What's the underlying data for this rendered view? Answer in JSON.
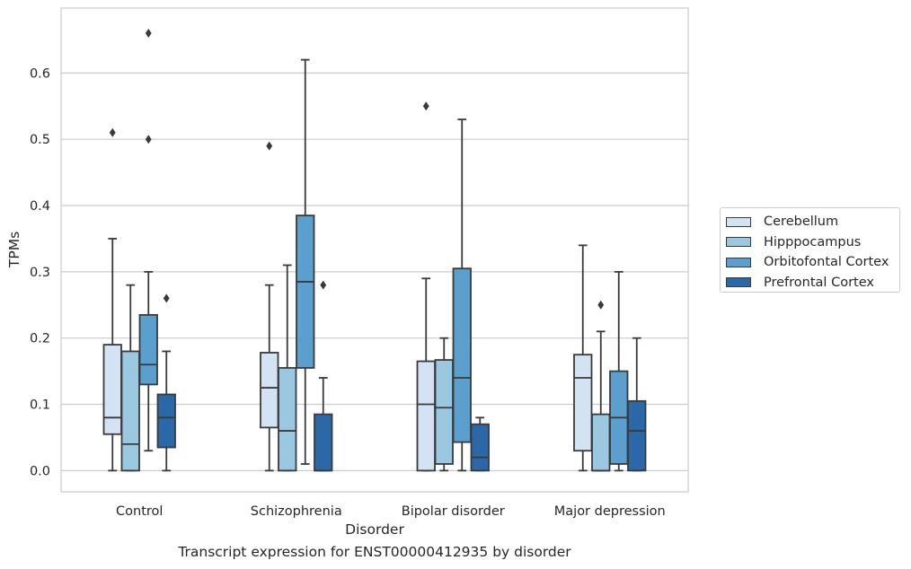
{
  "caption": "Transcript expression for ENST00000412935 by disorder",
  "chart_data": {
    "type": "boxplot",
    "xlabel": "Disorder",
    "ylabel": "TPMs",
    "ylim": [
      -0.032,
      0.698
    ],
    "yticks": [
      "0.0",
      "0.1",
      "0.2",
      "0.3",
      "0.4",
      "0.5",
      "0.6"
    ],
    "grid": true,
    "legend_position": "right",
    "categories": [
      "Control",
      "Schizophrenia",
      "Bipolar disorder",
      "Major depression"
    ],
    "series": [
      {
        "name": "Cerebellum",
        "color": "#d3e3f3",
        "boxes": [
          {
            "q1": 0.055,
            "median": 0.08,
            "q3": 0.19,
            "whislo": 0.0,
            "whishi": 0.35,
            "fliers": [
              0.51
            ]
          },
          {
            "q1": 0.065,
            "median": 0.125,
            "q3": 0.178,
            "whislo": 0.0,
            "whishi": 0.28,
            "fliers": [
              0.49
            ]
          },
          {
            "q1": 0.0,
            "median": 0.1,
            "q3": 0.165,
            "whislo": 0.0,
            "whishi": 0.29,
            "fliers": [
              0.55
            ]
          },
          {
            "q1": 0.03,
            "median": 0.14,
            "q3": 0.175,
            "whislo": 0.0,
            "whishi": 0.34,
            "fliers": []
          }
        ]
      },
      {
        "name": "Hipppocampus",
        "color": "#9ac8e0",
        "boxes": [
          {
            "q1": 0.0,
            "median": 0.04,
            "q3": 0.18,
            "whislo": 0.0,
            "whishi": 0.28,
            "fliers": []
          },
          {
            "q1": 0.0,
            "median": 0.06,
            "q3": 0.155,
            "whislo": 0.0,
            "whishi": 0.31,
            "fliers": []
          },
          {
            "q1": 0.01,
            "median": 0.095,
            "q3": 0.167,
            "whislo": 0.0,
            "whishi": 0.2,
            "fliers": []
          },
          {
            "q1": 0.0,
            "median": 0.0,
            "q3": 0.085,
            "whislo": 0.0,
            "whishi": 0.21,
            "fliers": [
              0.25
            ]
          }
        ]
      },
      {
        "name": "Orbitofontal Cortex",
        "color": "#5a9fcd",
        "boxes": [
          {
            "q1": 0.13,
            "median": 0.16,
            "q3": 0.235,
            "whislo": 0.03,
            "whishi": 0.3,
            "fliers": [
              0.5,
              0.66
            ]
          },
          {
            "q1": 0.155,
            "median": 0.285,
            "q3": 0.385,
            "whislo": 0.01,
            "whishi": 0.62,
            "fliers": []
          },
          {
            "q1": 0.043,
            "median": 0.14,
            "q3": 0.305,
            "whislo": 0.0,
            "whishi": 0.53,
            "fliers": []
          },
          {
            "q1": 0.01,
            "median": 0.08,
            "q3": 0.15,
            "whislo": 0.0,
            "whishi": 0.3,
            "fliers": []
          }
        ]
      },
      {
        "name": "Prefrontal Cortex",
        "color": "#2a68a8",
        "boxes": [
          {
            "q1": 0.035,
            "median": 0.08,
            "q3": 0.115,
            "whislo": 0.0,
            "whishi": 0.18,
            "fliers": [
              0.26
            ]
          },
          {
            "q1": 0.0,
            "median": 0.0,
            "q3": 0.085,
            "whislo": 0.0,
            "whishi": 0.14,
            "fliers": [
              0.28
            ]
          },
          {
            "q1": 0.0,
            "median": 0.02,
            "q3": 0.07,
            "whislo": 0.0,
            "whishi": 0.08,
            "fliers": []
          },
          {
            "q1": 0.0,
            "median": 0.06,
            "q3": 0.105,
            "whislo": 0.0,
            "whishi": 0.2,
            "fliers": []
          }
        ]
      }
    ]
  }
}
